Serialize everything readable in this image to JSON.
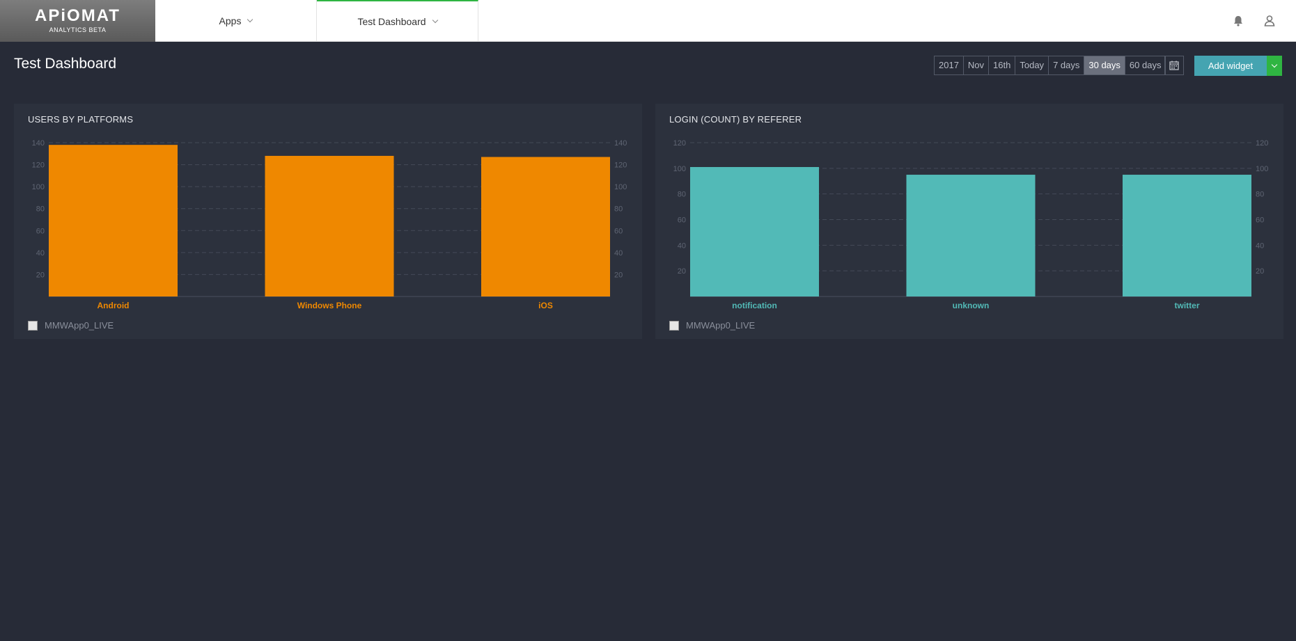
{
  "app": {
    "logo_word": "APiOMAT",
    "logo_sub": "ANALYTICS BETA"
  },
  "nav": {
    "apps_label": "Apps",
    "dashboard_label": "Test Dashboard"
  },
  "icons": {
    "bell": "bell-icon",
    "user": "user-icon",
    "calendar": "calendar-icon"
  },
  "page": {
    "title": "Test Dashboard"
  },
  "date_range": {
    "buttons": [
      "2017",
      "Nov",
      "16th",
      "Today",
      "7 days",
      "30 days",
      "60 days"
    ],
    "active": "30 days"
  },
  "toolbar": {
    "add_widget_label": "Add widget"
  },
  "colors": {
    "background": "#272b37",
    "widget_bg": "#2c313d",
    "orange": "#ef8800",
    "teal": "#52bab7",
    "accent_green": "#2fb542",
    "button_teal": "#45a4b1"
  },
  "chart_data": [
    {
      "type": "bar",
      "title": "USERS BY PLATFORMS",
      "categories": [
        "Android",
        "Windows Phone",
        "iOS"
      ],
      "series": [
        {
          "name": "MMWApp0_LIVE",
          "values": [
            138,
            128,
            127
          ]
        }
      ],
      "yticks": [
        20,
        40,
        60,
        80,
        100,
        120,
        140
      ],
      "ylim": [
        0,
        140
      ],
      "grid": true,
      "dual_axis_labels": true,
      "color": "#ef8800",
      "legend_placement": "bottom-left"
    },
    {
      "type": "bar",
      "title": "LOGIN (COUNT) BY REFERER",
      "categories": [
        "notification",
        "unknown",
        "twitter"
      ],
      "series": [
        {
          "name": "MMWApp0_LIVE",
          "values": [
            101,
            95,
            95
          ]
        }
      ],
      "yticks": [
        20,
        40,
        60,
        80,
        100,
        120
      ],
      "ylim": [
        0,
        120
      ],
      "grid": true,
      "dual_axis_labels": true,
      "color": "#52bab7",
      "legend_placement": "bottom-left"
    }
  ]
}
